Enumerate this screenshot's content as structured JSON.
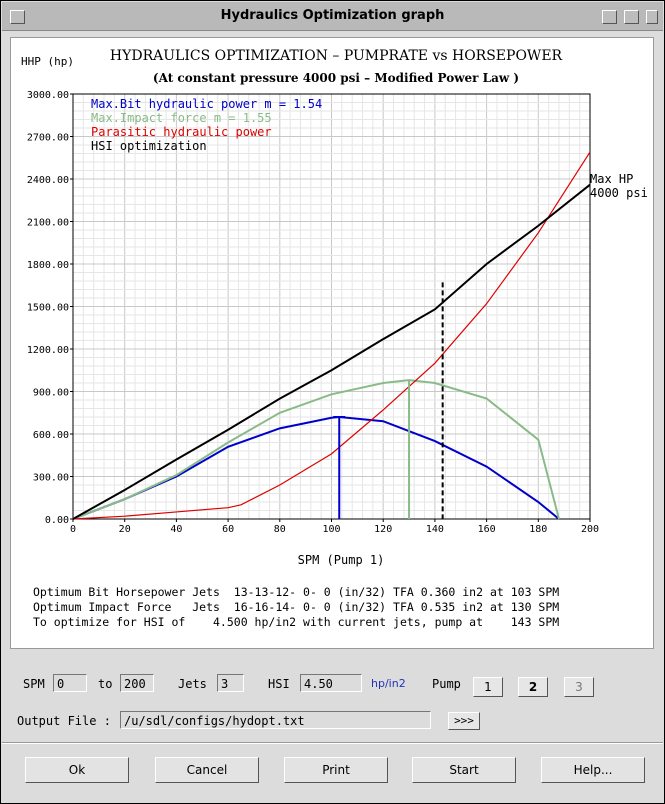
{
  "window": {
    "title": "Hydraulics Optimization graph"
  },
  "chart": {
    "title": "HYDRAULICS OPTIMIZATION – PUMPRATE vs HORSEPOWER",
    "subtitle": "(At constant pressure 4000 psi – Modified Power Law )",
    "ylabel": "HHP (hp)",
    "xlabel": "SPM (Pump 1)",
    "yticks": [
      "3000.00",
      "2700.00",
      "2400.00",
      "2100.00",
      "1800.00",
      "1500.00",
      "1200.00",
      "900.00",
      "600.00",
      "300.00",
      "0.00"
    ],
    "xticks": [
      "0",
      "20",
      "40",
      "60",
      "80",
      "100",
      "120",
      "140",
      "160",
      "180",
      "200"
    ],
    "legend": [
      {
        "label": "Max.Bit hydraulic power m = 1.54",
        "color": "#0000cc"
      },
      {
        "label": "Max.Impact force m = 1.55",
        "color": "#88bb88"
      },
      {
        "label": "Parasitic hydraulic power",
        "color": "#dd0000"
      },
      {
        "label": "HSI optimization",
        "color": "#000000"
      }
    ],
    "annotation": {
      "line1": "Max HP",
      "line2": "4000 psi"
    }
  },
  "chart_data": {
    "type": "line",
    "xlabel": "SPM (Pump 1)",
    "ylabel": "HHP (hp)",
    "xlim": [
      0,
      200
    ],
    "ylim": [
      0,
      3000
    ],
    "grid": true,
    "legend_position": "top-left",
    "series": [
      {
        "name": "Max.Bit hydraulic power m = 1.54",
        "color": "#0000cc",
        "x": [
          0,
          20,
          40,
          60,
          80,
          100,
          103,
          120,
          140,
          160,
          180,
          188
        ],
        "y": [
          0,
          140,
          300,
          510,
          640,
          715,
          720,
          690,
          550,
          370,
          120,
          0
        ]
      },
      {
        "name": "Max.Impact force m = 1.55",
        "color": "#88bb88",
        "x": [
          0,
          20,
          40,
          60,
          80,
          100,
          120,
          130,
          140,
          160,
          180,
          188
        ],
        "y": [
          0,
          140,
          310,
          540,
          750,
          880,
          960,
          980,
          960,
          850,
          560,
          0
        ]
      },
      {
        "name": "Parasitic hydraulic power",
        "color": "#dd0000",
        "x": [
          0,
          20,
          40,
          60,
          65,
          80,
          100,
          120,
          140,
          160,
          180,
          200
        ],
        "y": [
          0,
          20,
          50,
          80,
          100,
          240,
          460,
          770,
          1100,
          1520,
          2020,
          2590
        ]
      },
      {
        "name": "HSI optimization",
        "color": "#000000",
        "x": [
          0,
          20,
          40,
          60,
          80,
          100,
          120,
          140,
          160,
          180,
          200
        ],
        "y": [
          0,
          205,
          420,
          630,
          850,
          1050,
          1270,
          1480,
          1800,
          2070,
          2360
        ]
      }
    ],
    "markers": [
      {
        "x": 103,
        "y": 720,
        "color": "#0000cc",
        "style": "solid"
      },
      {
        "x": 130,
        "y": 980,
        "color": "#88bb88",
        "style": "solid"
      },
      {
        "x": 143,
        "y": 1670,
        "color": "#000000",
        "style": "dashed"
      }
    ]
  },
  "results": {
    "line1": "Optimum Bit Horsepower Jets  13-13-12- 0- 0 (in/32) TFA 0.360 in2 at 103 SPM",
    "line2": "Optimum Impact Force   Jets  16-16-14- 0- 0 (in/32) TFA 0.535 in2 at 130 SPM",
    "line3": "To optimize for HSI of    4.500 hp/in2 with current jets, pump at    143 SPM"
  },
  "controls": {
    "spm_label": "SPM",
    "spm_from": "0",
    "to_label": "to",
    "spm_to": "200",
    "jets_label": "Jets",
    "jets_value": "3",
    "hsi_label": "HSI",
    "hsi_value": "4.50",
    "hsi_unit": "hp/in2",
    "pump_label": "Pump",
    "pump_buttons": [
      "1",
      "2",
      "3"
    ],
    "output_label": "Output File :",
    "output_value": "/u/sdl/configs/hydopt.txt",
    "browse_label": ">>>"
  },
  "buttons": {
    "ok": "Ok",
    "cancel": "Cancel",
    "print": "Print",
    "start": "Start",
    "help": "Help..."
  }
}
